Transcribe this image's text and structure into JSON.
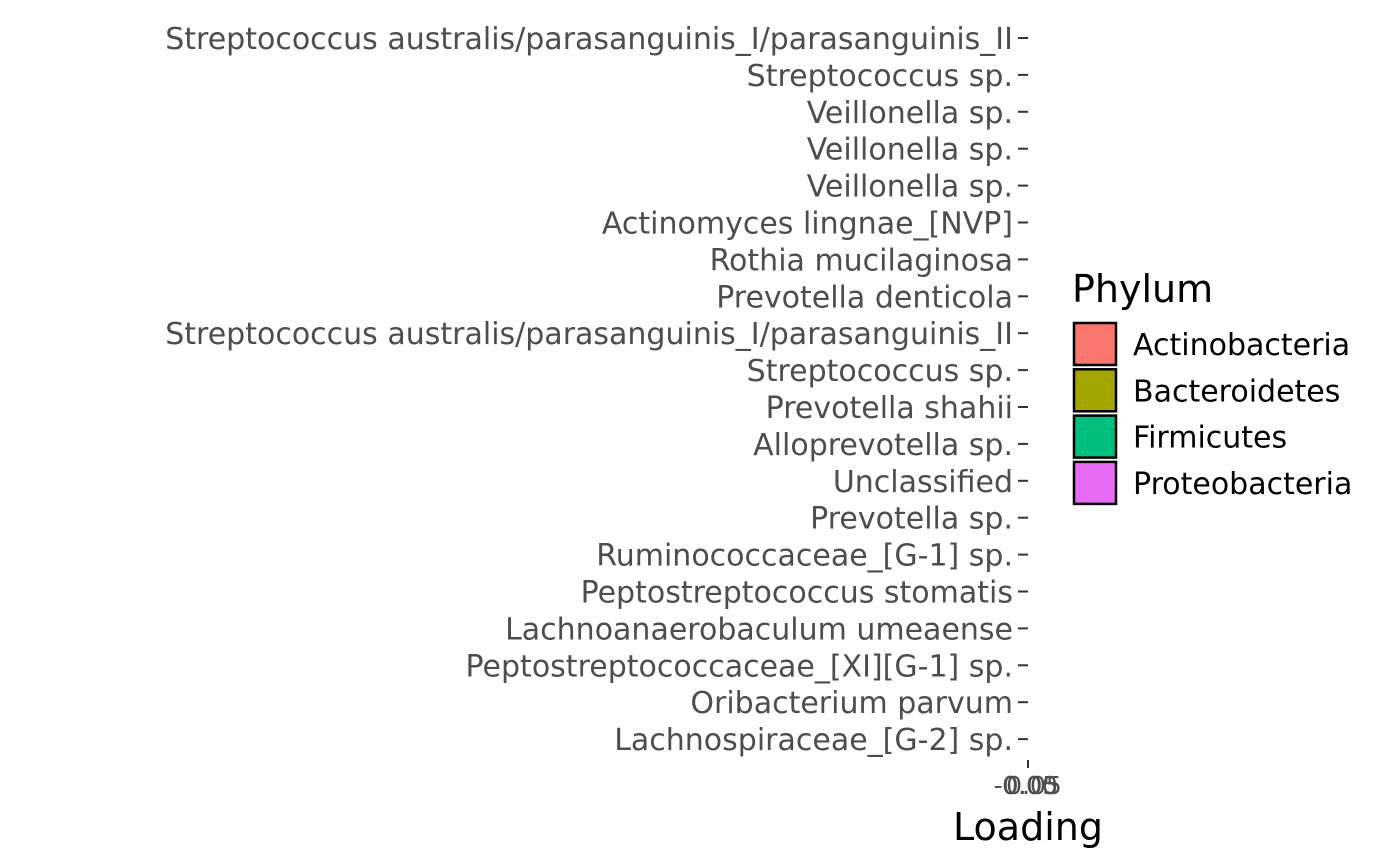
{
  "chart_data": {
    "type": "bar",
    "orientation": "horizontal",
    "categories": [
      "Streptococcus australis/parasanguinis_I/parasanguinis_II",
      "Streptococcus sp.",
      "Veillonella sp.",
      "Veillonella sp.",
      "Veillonella sp.",
      "Actinomyces lingnae_[NVP]",
      "Rothia mucilaginosa",
      "Prevotella denticola",
      "Streptococcus australis/parasanguinis_I/parasanguinis_II",
      "Streptococcus sp.",
      "Prevotella shahii",
      "Alloprevotella sp.",
      "Unclassified",
      "Prevotella sp.",
      "Ruminococcaceae_[G-1] sp.",
      "Peptostreptococcus stomatis",
      "Lachnoanaerobaculum umeaense",
      "Peptostreptococcaceae_[XI][G-1] sp.",
      "Oribacterium parvum",
      "Lachnospiraceae_[G-2] sp."
    ],
    "values": [
      0,
      0,
      0,
      0,
      0,
      0,
      0,
      0,
      0,
      0,
      0,
      0,
      0,
      0,
      0,
      0,
      0,
      0,
      0,
      0
    ],
    "x_ticks": [
      "-0.05",
      "0.00",
      "0.05"
    ],
    "xlabel": "Loading",
    "ylabel": "",
    "grid": false,
    "legend": {
      "title": "Phylum",
      "position": "right",
      "entries": [
        {
          "label": "Actinobacteria",
          "color": "#F8766D"
        },
        {
          "label": "Bacteroidetes",
          "color": "#A3A500"
        },
        {
          "label": "Firmicutes",
          "color": "#00BF7D"
        },
        {
          "label": "Proteobacteria",
          "color": "#E76BF3"
        }
      ]
    }
  }
}
